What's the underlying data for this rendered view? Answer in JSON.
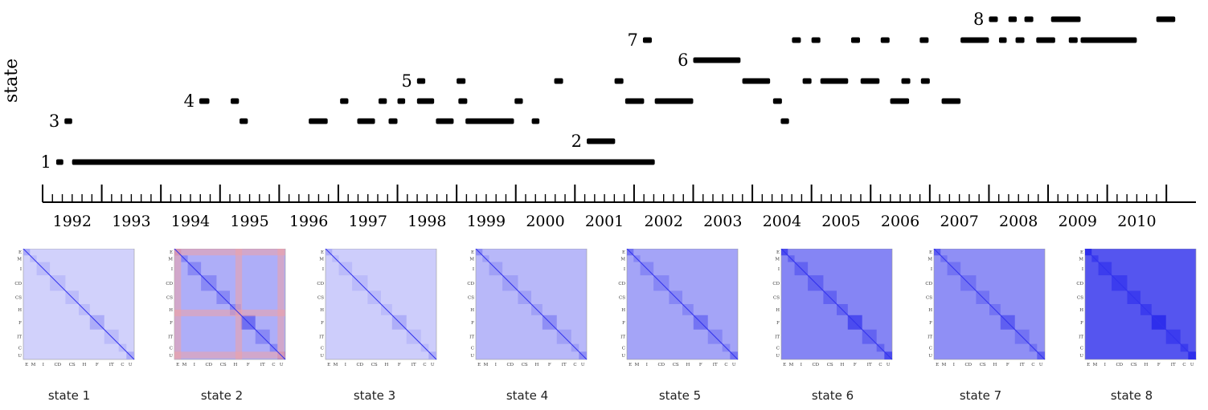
{
  "chart_data": {
    "type": "timeline",
    "ylabel": "state",
    "x_tick_labels": [
      "1992",
      "1993",
      "1994",
      "1995",
      "1996",
      "1997",
      "1998",
      "1999",
      "2000",
      "2001",
      "2002",
      "2003",
      "2004",
      "2005",
      "2006",
      "2007",
      "2008",
      "2009",
      "2010"
    ],
    "x_range": [
      1991.7,
      2010.95
    ],
    "states": [
      {
        "state": 1,
        "label": "1",
        "segments": [
          [
            1991.73,
            1991.85
          ],
          [
            1992.0,
            2001.85
          ]
        ]
      },
      {
        "state": 1,
        "label": "",
        "segments": [
          [
            1992.0,
            1993.85
          ],
          [
            1994.35,
            1994.65
          ],
          [
            1995.0,
            1995.95
          ],
          [
            1996.35,
            1996.5
          ],
          [
            1996.68,
            1996.82
          ],
          [
            1999.83,
            1999.97
          ],
          [
            2000.33,
            2000.63
          ]
        ]
      },
      {
        "state": 2,
        "label": "2",
        "segments": [
          [
            2000.7,
            2001.18
          ]
        ]
      },
      {
        "state": 3,
        "label": "3",
        "segments": [
          [
            1991.87,
            1992.0
          ],
          [
            1994.83,
            1994.97
          ],
          [
            1996.0,
            1996.32
          ],
          [
            1996.82,
            1997.12
          ],
          [
            1997.35,
            1997.5
          ],
          [
            1998.15,
            1998.45
          ],
          [
            1998.65,
            1999.47
          ],
          [
            1999.77,
            1999.9
          ],
          [
            2003.98,
            2004.12
          ]
        ]
      },
      {
        "state": 4,
        "label": "4",
        "segments": [
          [
            1994.15,
            1994.32
          ],
          [
            1994.68,
            1994.82
          ],
          [
            1996.53,
            1996.67
          ],
          [
            1997.18,
            1997.32
          ],
          [
            1997.5,
            1997.63
          ],
          [
            1997.83,
            1998.12
          ],
          [
            1998.53,
            1998.68
          ],
          [
            1999.48,
            1999.62
          ],
          [
            2001.35,
            2001.67
          ],
          [
            2001.85,
            2002.5
          ],
          [
            2003.85,
            2004.0
          ],
          [
            2005.83,
            2006.15
          ],
          [
            2006.7,
            2007.02
          ]
        ]
      },
      {
        "state": 5,
        "label": "5",
        "segments": [
          [
            1997.83,
            1997.97
          ],
          [
            1998.5,
            1998.65
          ],
          [
            2000.15,
            2000.3
          ],
          [
            2001.17,
            2001.32
          ],
          [
            2003.33,
            2003.8
          ],
          [
            2004.35,
            2004.5
          ],
          [
            2004.65,
            2005.12
          ],
          [
            2005.33,
            2005.65
          ],
          [
            2006.02,
            2006.17
          ],
          [
            2006.35,
            2006.5
          ]
        ]
      },
      {
        "state": 6,
        "label": "6",
        "segments": [
          [
            2002.5,
            2003.3
          ]
        ]
      },
      {
        "state": 7,
        "label": "7",
        "segments": [
          [
            2001.65,
            2001.8
          ],
          [
            2004.17,
            2004.32
          ],
          [
            2004.5,
            2004.65
          ],
          [
            2005.17,
            2005.32
          ],
          [
            2005.67,
            2005.82
          ],
          [
            2006.33,
            2006.48
          ],
          [
            2007.02,
            2007.5
          ],
          [
            2007.67,
            2007.8
          ],
          [
            2009.05,
            2010.0
          ]
        ]
      },
      {
        "state": 7,
        "label": "",
        "segments": [
          [
            2007.95,
            2008.1
          ],
          [
            2008.3,
            2008.62
          ],
          [
            2008.85,
            2009.0
          ]
        ]
      },
      {
        "state": 8,
        "label": "8",
        "segments": [
          [
            2007.5,
            2007.65
          ],
          [
            2007.83,
            2007.97
          ],
          [
            2008.1,
            2008.25
          ],
          [
            2008.55,
            2009.05
          ],
          [
            2010.33,
            2010.65
          ]
        ]
      }
    ],
    "panels": [
      {
        "caption": "state 1",
        "intensity": 0.18,
        "red": 0.0,
        "block_strength": 0.35
      },
      {
        "caption": "state 2",
        "intensity": 0.35,
        "red": 0.45,
        "block_strength": 0.6
      },
      {
        "caption": "state 3",
        "intensity": 0.2,
        "red": 0.0,
        "block_strength": 0.3
      },
      {
        "caption": "state 4",
        "intensity": 0.3,
        "red": 0.0,
        "block_strength": 0.4
      },
      {
        "caption": "state 5",
        "intensity": 0.4,
        "red": 0.0,
        "block_strength": 0.45
      },
      {
        "caption": "state 6",
        "intensity": 0.55,
        "red": 0.0,
        "block_strength": 0.55
      },
      {
        "caption": "state 7",
        "intensity": 0.5,
        "red": 0.0,
        "block_strength": 0.45
      },
      {
        "caption": "state 8",
        "intensity": 0.78,
        "red": 0.0,
        "block_strength": 0.4
      }
    ],
    "panel_axis_labels": [
      "E",
      "M",
      "I",
      "CD",
      "CS",
      "H",
      "F",
      "IT",
      "C",
      "U"
    ],
    "colors": {
      "bar": "#000000",
      "cold": "#f6f6ff",
      "hot": "#2424ee",
      "red": "#ff9a8a"
    }
  }
}
